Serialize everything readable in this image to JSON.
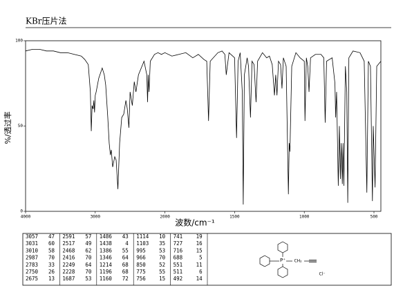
{
  "chart_data": {
    "type": "line",
    "title": "KBr压片法",
    "x_label": "波数/cm⁻¹",
    "y_label": "%/透过率",
    "xlim": [
      4000,
      450
    ],
    "xticks": [
      4000,
      3000,
      2000,
      1500,
      1000,
      500
    ],
    "ylim": [
      0,
      100
    ],
    "yticks": [
      0,
      50,
      100
    ],
    "series": [
      {
        "color": "#000000",
        "x": [
          4000,
          3900,
          3800,
          3700,
          3600,
          3500,
          3400,
          3300,
          3200,
          3150,
          3100,
          3070,
          3057,
          3045,
          3031,
          3020,
          3010,
          3000,
          2987,
          2950,
          2900,
          2870,
          2850,
          2820,
          2800,
          2783,
          2770,
          2750,
          2720,
          2700,
          2675,
          2650,
          2620,
          2591,
          2560,
          2540,
          2517,
          2500,
          2468,
          2440,
          2416,
          2380,
          2300,
          2260,
          2249,
          2240,
          2228,
          2210,
          2150,
          2100,
          2050,
          2000,
          1950,
          1900,
          1850,
          1800,
          1760,
          1720,
          1700,
          1687,
          1675,
          1620,
          1590,
          1570,
          1560,
          1540,
          1500,
          1486,
          1475,
          1460,
          1445,
          1438,
          1430,
          1410,
          1400,
          1386,
          1375,
          1360,
          1346,
          1335,
          1300,
          1270,
          1250,
          1230,
          1214,
          1205,
          1196,
          1185,
          1170,
          1160,
          1150,
          1130,
          1114,
          1108,
          1103,
          1090,
          1060,
          1030,
          1000,
          995,
          985,
          975,
          966,
          955,
          920,
          880,
          860,
          850,
          840,
          800,
          780,
          775,
          768,
          756,
          748,
          741,
          735,
          727,
          722,
          716,
          705,
          695,
          688,
          680,
          650,
          600,
          570,
          551,
          540,
          525,
          511,
          505,
          492,
          480,
          450
        ],
        "values": [
          94,
          95,
          95,
          94,
          94,
          93,
          93,
          92,
          91,
          89,
          86,
          70,
          47,
          62,
          60,
          65,
          58,
          68,
          70,
          78,
          84,
          80,
          74,
          55,
          40,
          33,
          36,
          26,
          32,
          30,
          13,
          40,
          55,
          57,
          65,
          60,
          49,
          70,
          62,
          76,
          70,
          80,
          88,
          80,
          64,
          80,
          70,
          88,
          92,
          93,
          92,
          93,
          91,
          92,
          93,
          90,
          92,
          89,
          88,
          53,
          88,
          93,
          94,
          92,
          80,
          93,
          90,
          43,
          88,
          93,
          70,
          4,
          80,
          90,
          85,
          55,
          88,
          86,
          64,
          88,
          93,
          90,
          91,
          86,
          68,
          80,
          68,
          88,
          86,
          72,
          90,
          85,
          10,
          40,
          35,
          85,
          93,
          90,
          88,
          53,
          90,
          85,
          70,
          90,
          92,
          92,
          90,
          52,
          88,
          90,
          75,
          55,
          70,
          15,
          50,
          19,
          40,
          16,
          40,
          15,
          85,
          70,
          5,
          90,
          94,
          93,
          88,
          11,
          88,
          85,
          6,
          50,
          14,
          85,
          88
        ]
      }
    ]
  },
  "peak_table": {
    "rows": [
      [
        3057,
        47,
        2591,
        57,
        1486,
        43,
        1114,
        10,
        741,
        19
      ],
      [
        3031,
        60,
        2517,
        49,
        1438,
        4,
        1103,
        35,
        727,
        16
      ],
      [
        3010,
        58,
        2468,
        62,
        1386,
        55,
        995,
        53,
        716,
        15
      ],
      [
        2987,
        70,
        2416,
        70,
        1346,
        64,
        966,
        70,
        688,
        5
      ],
      [
        2783,
        33,
        2249,
        64,
        1214,
        68,
        850,
        52,
        551,
        11
      ],
      [
        2750,
        26,
        2228,
        70,
        1196,
        68,
        775,
        55,
        511,
        6
      ],
      [
        2675,
        13,
        1687,
        53,
        1160,
        72,
        756,
        15,
        492,
        14
      ]
    ]
  },
  "structure": {
    "labels": [
      "P⁺",
      "CH₂",
      "Cl⁻"
    ]
  }
}
